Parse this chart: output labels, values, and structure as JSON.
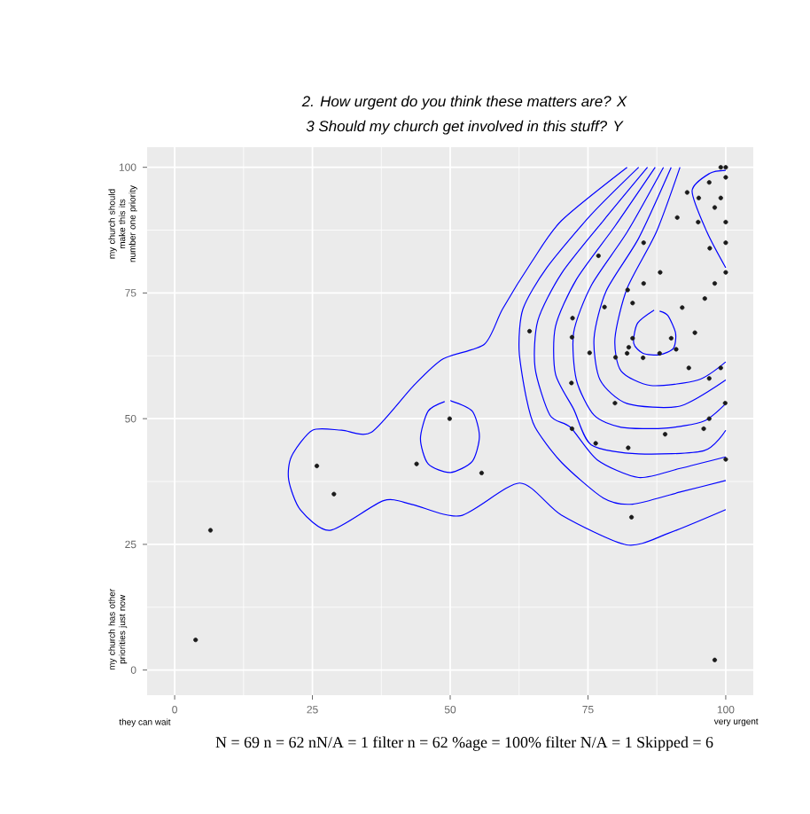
{
  "chart_data": {
    "type": "scatter",
    "title": "2. How urgent do you think these matters are? X",
    "subtitle": "3 Should my church get involved in this stuff? Y",
    "xlim": [
      -5,
      105
    ],
    "ylim": [
      -5,
      104
    ],
    "xticks": [
      0,
      25,
      50,
      75,
      100
    ],
    "yticks": [
      0,
      25,
      50,
      75,
      100
    ],
    "grid": true,
    "annotations": [
      "my church should make this its number one priority",
      "my church has other priorities just now",
      "they can wait",
      "very urgent",
      "N = 69 n = 62  nN/A = 1  filter n = 62  %age = 100%  filter N/A = 1  Skipped =  6"
    ],
    "series": [
      {
        "type": "line",
        "color": "#0000ff",
        "marker": "none",
        "line_style": "solid",
        "x": [
          82.1,
          70.2,
          64.8,
          59.5,
          56.2,
          48.7,
          43.3,
          35.7,
          30.3,
          25,
          21.2,
          20.7,
          22.8,
          28.2,
          37.9,
          43.2,
          51.9,
          62.6,
          70.2,
          82,
          89.6,
          100
        ],
        "values": [
          100,
          89.4,
          81.2,
          71.8,
          64.8,
          61.9,
          56.5,
          47.3,
          47.7,
          47.7,
          42.5,
          37.8,
          31.9,
          27.8,
          33.7,
          32.9,
          30.7,
          37.2,
          30.8,
          24.9,
          27.2,
          31.9
        ]
      },
      {
        "type": "line",
        "color": "#0000ff",
        "marker": "none",
        "line_style": "solid",
        "x": [
          84.2,
          75.6,
          67.5,
          63.2,
          62.5,
          63.8,
          65.4,
          70.2,
          77.8,
          83.1,
          91.7,
          100
        ],
        "values": [
          100,
          90.6,
          80,
          71.8,
          63.6,
          54.2,
          48.3,
          41.3,
          34.2,
          33,
          35.4,
          37.7
        ]
      },
      {
        "type": "line",
        "color": "#0000ff",
        "marker": "none",
        "line_style": "solid",
        "x": [
          85.8,
          77.8,
          70.2,
          65.9,
          65.4,
          68.1,
          71.8,
          76.7,
          84.2,
          91.7,
          100
        ],
        "values": [
          100,
          89.4,
          78.9,
          69.5,
          60.1,
          50.7,
          48.3,
          41.8,
          38.3,
          40.1,
          42.4
        ]
      },
      {
        "type": "line",
        "color": "#0000ff",
        "marker": "none",
        "line_style": "solid",
        "x": [
          87.2,
          79.9,
          72.9,
          69.1,
          69.1,
          72.4,
          75.6,
          84.2,
          96,
          100
        ],
        "values": [
          100,
          88.3,
          77.7,
          68.3,
          58.9,
          51.9,
          44.8,
          43,
          43.6,
          47.7
        ]
      },
      {
        "type": "line",
        "color": "#0000ff",
        "marker": "none",
        "line_style": "solid",
        "x": [
          88.7,
          82.1,
          75.6,
          72.4,
          72.9,
          76.1,
          81,
          89,
          96,
          100
        ],
        "values": [
          100,
          87.1,
          76.5,
          67.1,
          57.7,
          50.7,
          48.3,
          48.1,
          49.5,
          53
        ]
      },
      {
        "type": "line",
        "color": "#0000ff",
        "marker": "none",
        "line_style": "solid",
        "x": [
          90.1,
          84.2,
          78.3,
          76.1,
          77.2,
          82.1,
          91.7,
          100
        ],
        "values": [
          100,
          85.9,
          75.4,
          66,
          57.7,
          53,
          52.5,
          57.7
        ]
      },
      {
        "type": "line",
        "color": "#0000ff",
        "marker": "none",
        "line_style": "solid",
        "x": [
          91.7,
          87.4,
          82.1,
          79.9,
          81,
          86.4,
          95,
          100
        ],
        "values": [
          100,
          87.1,
          75.9,
          66,
          59.5,
          56.6,
          57.7,
          61.3
        ]
      },
      {
        "type": "line",
        "color": "#0000ff",
        "marker": "none",
        "line_style": "solid",
        "x": [
          100,
          96.6,
          93.9,
          97.1,
          100
        ],
        "values": [
          80,
          87.1,
          95.3,
          98.8,
          99.4
        ]
      },
      {
        "type": "line",
        "color": "#0000ff",
        "marker": "none",
        "line_style": "solid",
        "x": [
          50,
          54,
          55.3,
          54,
          50,
          46,
          44.6,
          46,
          49
        ],
        "values": [
          53.6,
          51.5,
          46.5,
          41.5,
          39.3,
          41,
          46,
          51.5,
          53.4
        ]
      },
      {
        "type": "line",
        "color": "#0000ff",
        "marker": "none",
        "line_style": "solid",
        "x": [
          87,
          84,
          83.3,
          85,
          88,
          90.5,
          90.9,
          89.5,
          88
        ],
        "values": [
          71.6,
          69,
          65,
          63,
          62.7,
          64,
          67,
          70.5,
          71.4
        ]
      },
      {
        "type": "scatter",
        "color": "#1a1a1a",
        "marker": "circle",
        "x": [
          3.8,
          6.5,
          25.8,
          28.9,
          43.9,
          49.9,
          55.7,
          98,
          82.9,
          82.3,
          76.4,
          89,
          96,
          100,
          72.1,
          99.1,
          100,
          100,
          97,
          93,
          95.1,
          99.1,
          98,
          91.2,
          95,
          100,
          76.9,
          85.1,
          97.1,
          100,
          100,
          88.1,
          82.2,
          85.1,
          98,
          96.2,
          83.1,
          78,
          92.1,
          72.2,
          64.4,
          72.1,
          83.1,
          90.1,
          94.4,
          75.3,
          82.4,
          82.1,
          80,
          91,
          88,
          85,
          93.3,
          99.1,
          97,
          72,
          79.9,
          99.9,
          97
        ],
        "values": [
          6,
          27.8,
          40.6,
          35,
          41,
          50,
          39.2,
          2,
          30.4,
          44.2,
          45.1,
          46.9,
          48,
          41.9,
          48,
          100,
          100,
          98,
          97,
          95,
          93.9,
          93.9,
          92,
          90,
          89.1,
          89.1,
          82.4,
          85,
          83.9,
          85,
          79.1,
          79.1,
          75.6,
          76.9,
          76.9,
          73.9,
          73,
          72.2,
          72.1,
          70,
          67.4,
          66.2,
          66,
          66,
          67.1,
          63.1,
          64.2,
          63,
          62.2,
          63.8,
          63,
          62.1,
          60.1,
          60.1,
          58,
          57.1,
          53.1,
          53.1,
          50
        ]
      }
    ]
  }
}
